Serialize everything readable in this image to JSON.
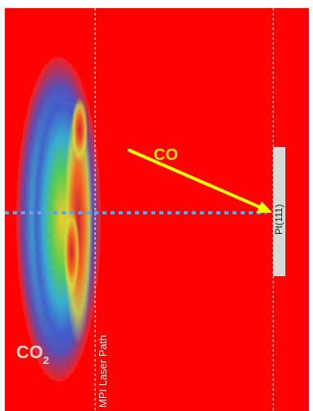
{
  "figure": {
    "background_color": "#ff0000",
    "co_label": "CO",
    "co2_label_main": "CO",
    "co2_label_subscript": "2",
    "laser_path_label": "MPI Laser Path",
    "surface_label": "Pt(111)",
    "arrow_color": "#ffff00",
    "laser_line_color": "#6aa0e0",
    "surface_color": "#d9d9d9",
    "plume_colors": [
      "#0a1a8a",
      "#1f6cff",
      "#1ad0d0",
      "#3fcf3f",
      "#d8e020",
      "#ff7a00",
      "#e01010",
      "#b00020"
    ]
  }
}
